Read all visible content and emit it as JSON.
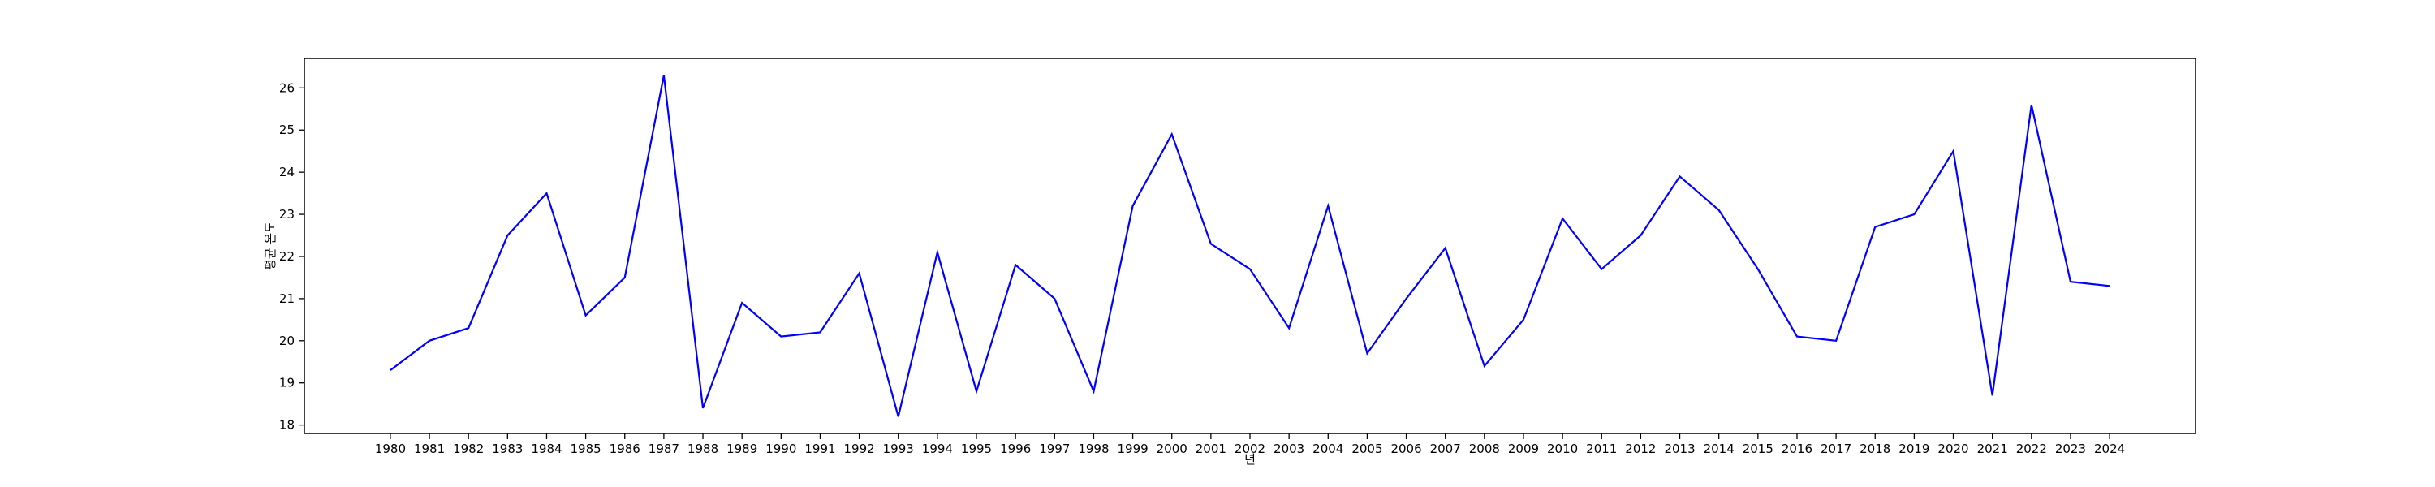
{
  "chart_data": {
    "type": "line",
    "title": "",
    "xlabel": "년",
    "ylabel": "평균 온도",
    "x": [
      1980,
      1981,
      1982,
      1983,
      1984,
      1985,
      1986,
      1987,
      1988,
      1989,
      1990,
      1991,
      1992,
      1993,
      1994,
      1995,
      1996,
      1997,
      1998,
      1999,
      2000,
      2001,
      2002,
      2003,
      2004,
      2005,
      2006,
      2007,
      2008,
      2009,
      2010,
      2011,
      2012,
      2013,
      2014,
      2015,
      2016,
      2017,
      2018,
      2019,
      2020,
      2021,
      2022,
      2023,
      2024
    ],
    "series": [
      {
        "name": "",
        "color": "#0000ff",
        "values": [
          19.3,
          20.0,
          20.3,
          22.5,
          23.5,
          20.6,
          21.5,
          26.3,
          18.4,
          20.9,
          20.1,
          20.2,
          21.6,
          18.2,
          22.1,
          18.8,
          21.8,
          21.0,
          18.8,
          23.2,
          24.9,
          22.3,
          21.7,
          20.3,
          23.2,
          19.7,
          21.0,
          22.2,
          19.4,
          20.5,
          22.9,
          21.7,
          22.5,
          23.9,
          23.1,
          21.7,
          20.1,
          20.0,
          22.7,
          23.0,
          24.5,
          18.7,
          25.6,
          21.4,
          21.3
        ]
      }
    ],
    "xlim": [
      1977.8,
      2026.2
    ],
    "ylim": [
      17.8,
      26.7
    ],
    "yticks": [
      18,
      19,
      20,
      21,
      22,
      23,
      24,
      25,
      26
    ],
    "grid": false,
    "legend": "none"
  }
}
